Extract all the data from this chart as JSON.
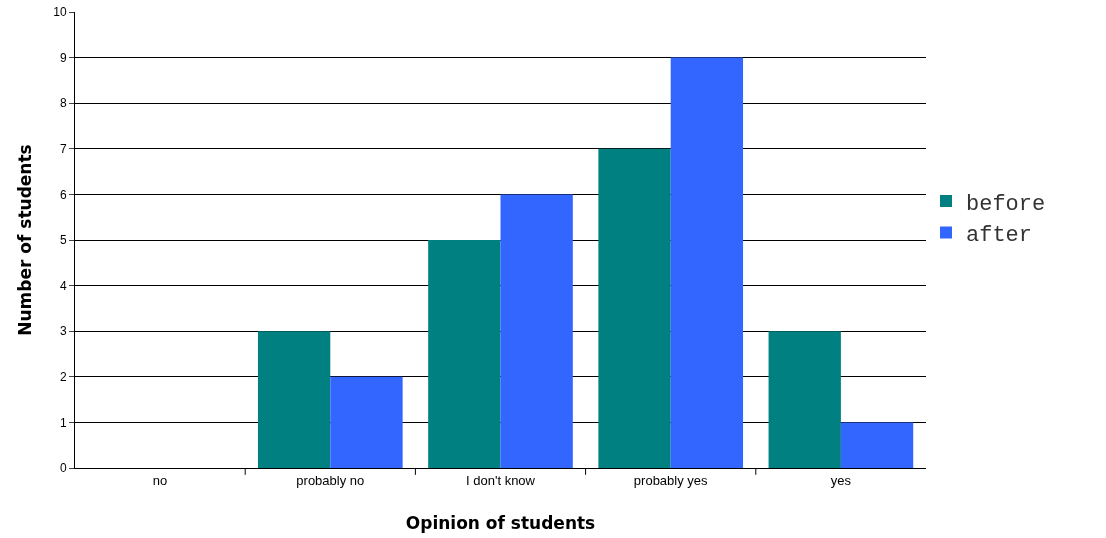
{
  "chart_data": {
    "type": "bar",
    "xlabel": "Opinion of students",
    "ylabel": "Number of students",
    "categories": [
      "no",
      "probably no",
      "I don't know",
      "probably yes",
      "yes"
    ],
    "series": [
      {
        "name": "before",
        "color": "#008080",
        "values": [
          0,
          3,
          5,
          7,
          3
        ]
      },
      {
        "name": "after",
        "color": "#3366ff",
        "values": [
          0,
          2,
          6,
          9,
          1
        ]
      }
    ],
    "ylim": [
      0,
      10
    ],
    "yticks": [
      0,
      1,
      2,
      3,
      4,
      5,
      6,
      7,
      8,
      9,
      10
    ],
    "grid": "y",
    "legend": "right"
  }
}
